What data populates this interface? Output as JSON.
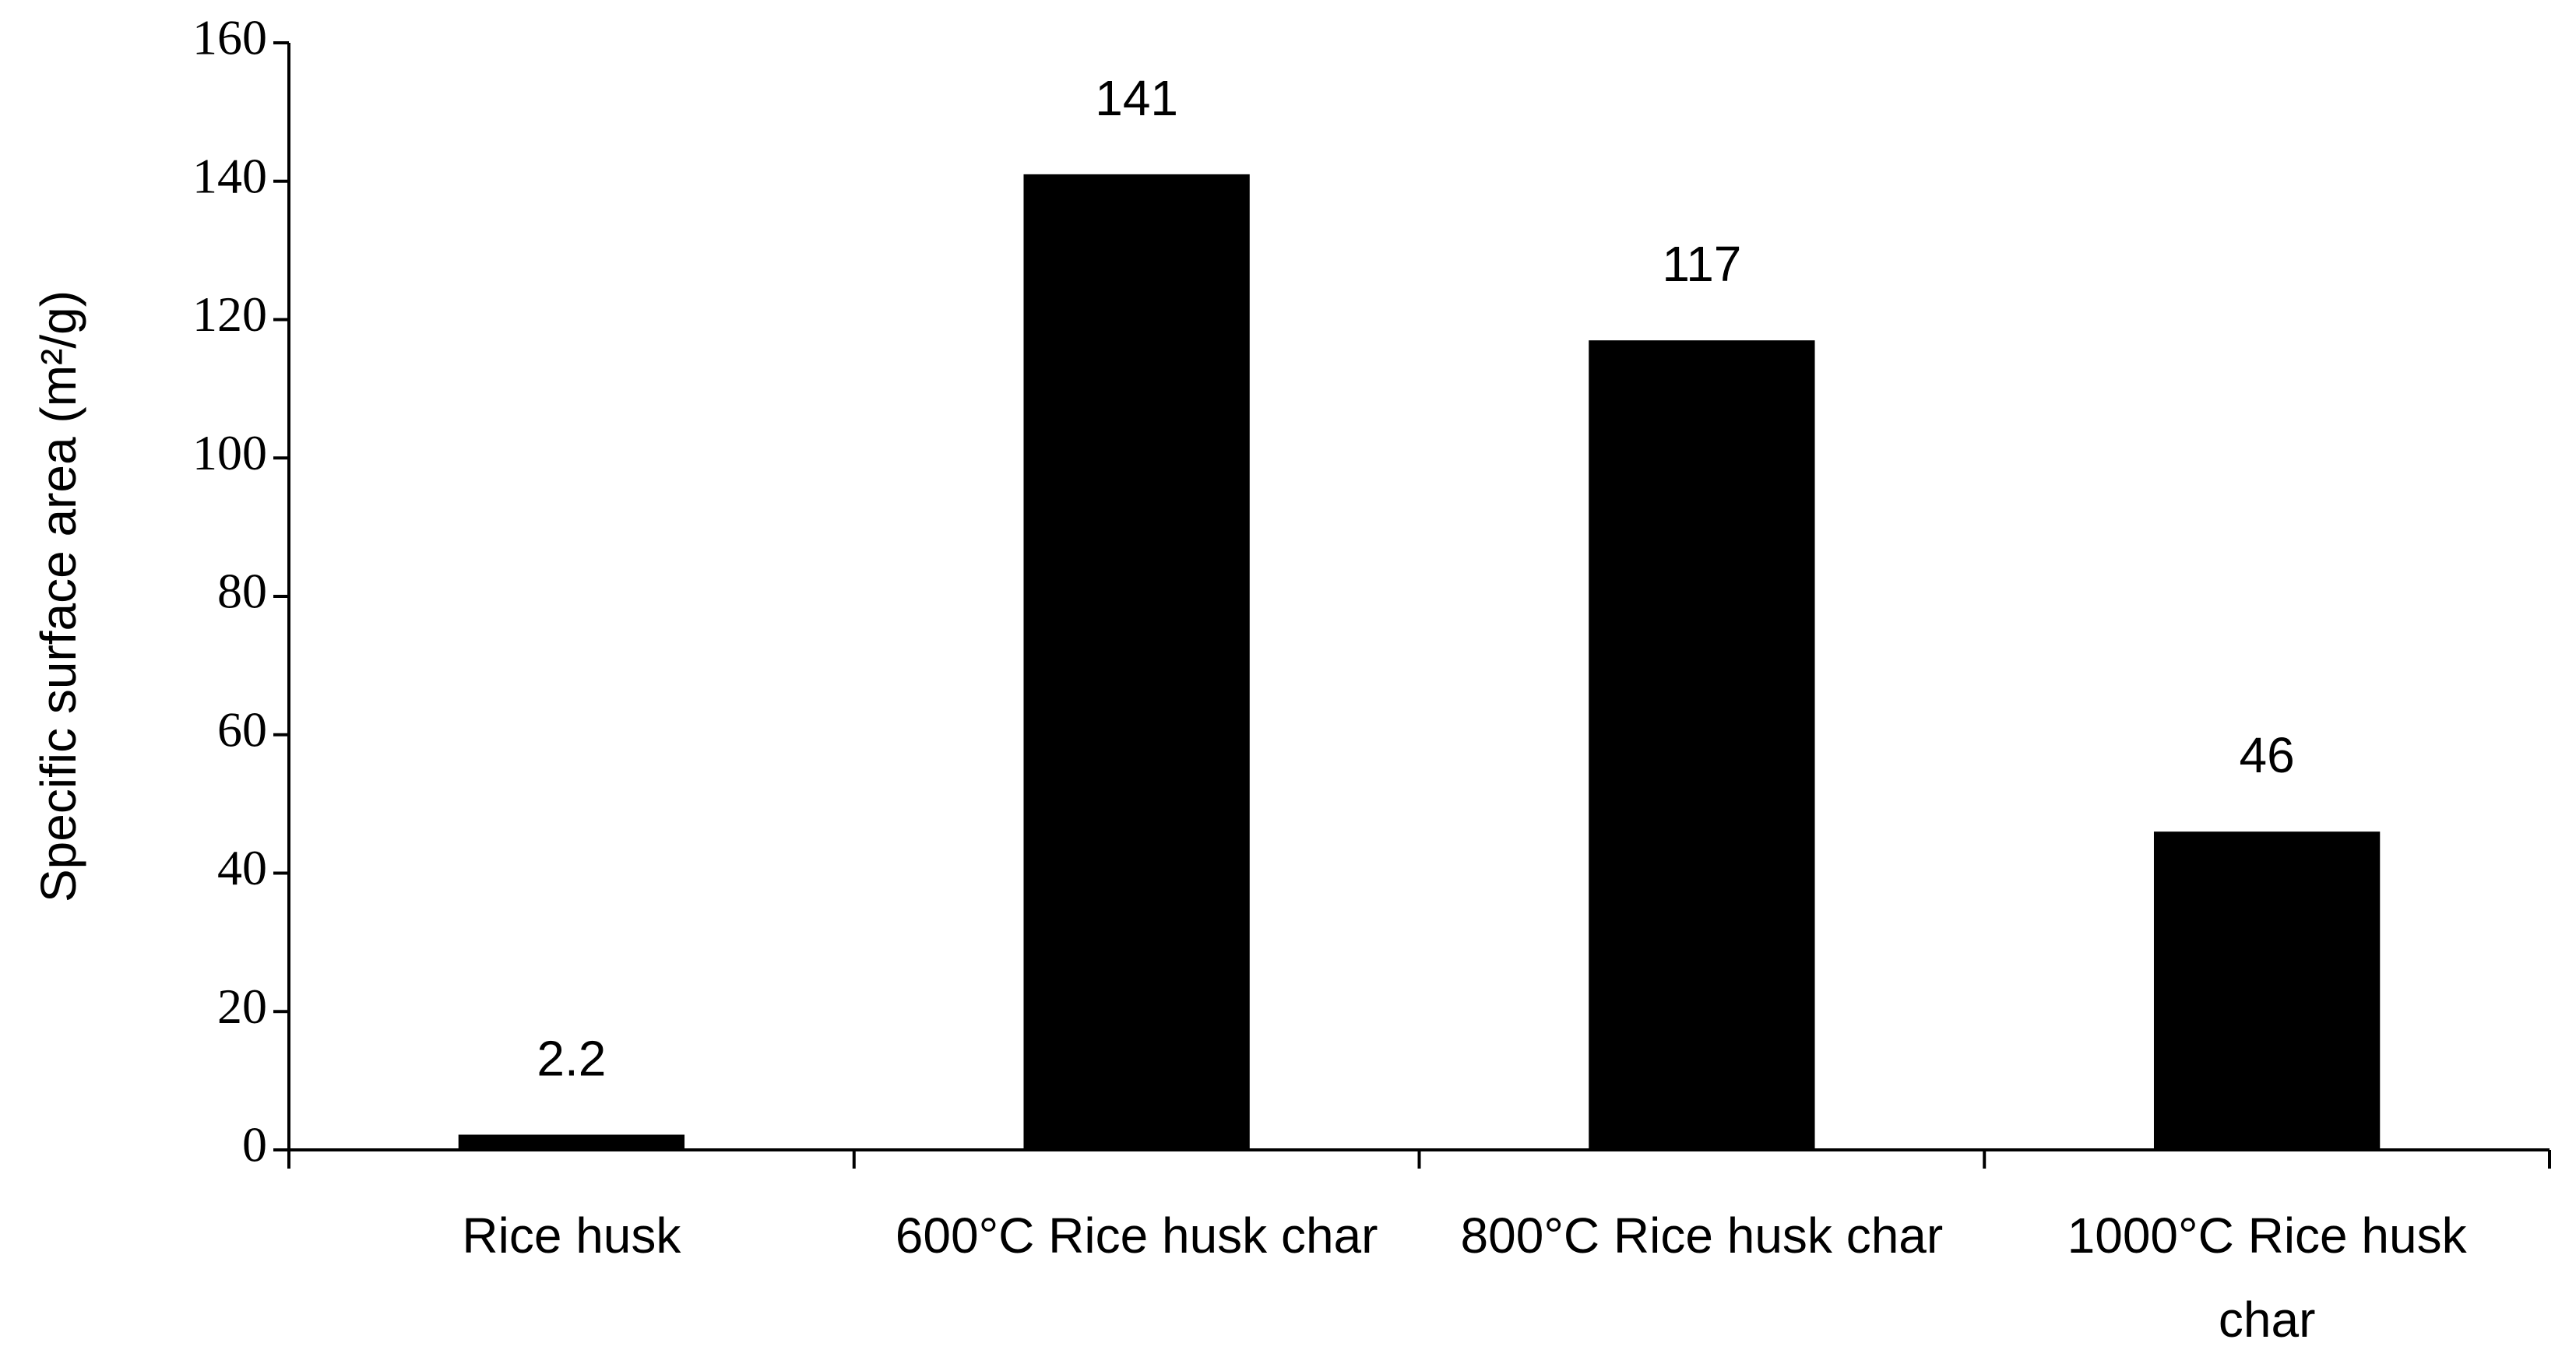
{
  "chart_data": {
    "type": "bar",
    "y_label": "Specific surface area (m²/g)",
    "categories": [
      "Rice husk",
      "600°C Rice husk char",
      "800°C Rice husk char",
      "1000°C Rice husk char"
    ],
    "values": [
      2.2,
      141,
      117,
      46
    ],
    "color": "#000000",
    "ylim": [
      0,
      160
    ],
    "yticks": [
      0,
      20,
      40,
      60,
      80,
      100,
      120,
      140,
      160
    ],
    "grid": false
  }
}
